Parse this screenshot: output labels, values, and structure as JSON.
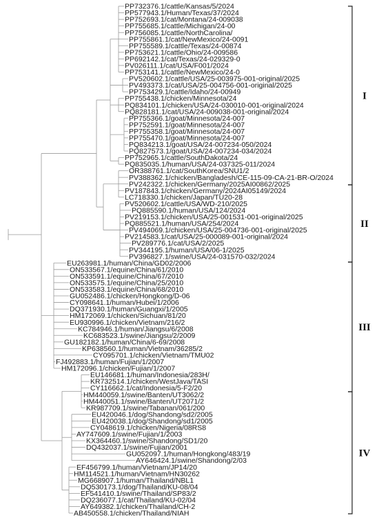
{
  "tree": {
    "clades": [
      {
        "label": "I"
      },
      {
        "label": "II"
      },
      {
        "label": "III"
      },
      {
        "label": "IV"
      }
    ],
    "leaves": [
      "PP732376.1/cattle/Kansas/5/2024",
      "PP577943.1/Human/Texas/37/2024",
      "PP752693.1/cat/Montana/24-009038",
      "PP755685.1/cattle/Michigan/24-00",
      "PP756085.1/cattle/NorthCarolina/",
      "PP755861.1/cat/NewMexico/24-0091",
      "PP755589.1/cattle/Texas/24-00874",
      "PP753621.1/cattle/Ohio/24-009586",
      "PP692142.1/cat/Texas/24-029329-0",
      "PV026111.1/cat/USA/F001/2024",
      "PP753141.1/cattle/NewMexico/24-0",
      "PV520602.1/cattle/USA/25-003975-001-original/2025",
      "PV493373.1/cat/USA/25-004756-001-original/2025",
      "PP753429.1/cattle/Idaho/24-00949",
      "PP755438.1/chicken/Minnesota/24",
      "PQ834101.1/chicken/USA/24-030010-001-original/2024",
      "PQ828181.1/cat/USA/24-009038-001-original/2024",
      "PP755366.1/goat/Minnesota/24-007",
      "PP752591.1/goat/Minnesota/24-007",
      "PP755358.1/goat/Minnesota/24-007",
      "PP755470.1/goat/Minnesota/24-007",
      "PQ834213.1/goat/USA/24-007234-050/2024",
      "PQ827573.1/goat/USA/24-007234-034/2024",
      "PP752965.1/cattle/SouthDakota/24",
      "PQ835035.1/human/USA/24-037325-011/2024",
      "OR388761.1/cat/SouthKorea/SNU1/2",
      "PV388362.1/chicken/Bangladesh/CE-115-09-CA-21-BR-O/2024",
      "PV242322.1/chicken/Germany/2025AI00862/2025",
      "PV187843.1/chicken/Germany/2024AI05149/2024",
      "LC718330.1/chicken/Japan/TU20-28",
      "PV520602.1/cattle/USA/WD-210/2025",
      "PQ885590.1/human/USA/124/2024",
      "PV219153.1/chicken/USA/25-001531-001-original/2025",
      "PQ885521.1/human/USA/254/2024",
      "PV494069.1/chicken/USA/25-004736-001-original/2025",
      "PV214583.1/cat/USA/25-000089-001-original/2024",
      "PV289776.1/cat/USA/2/2025",
      "PV344195.1/human/USA/06-1/2025",
      "PV396827.1/swine/USA/24-031570-032/2024",
      "EU263981.1/human/China/GD02/2006",
      "ON533567.1/equine/China/61/2010",
      "ON533591.1/equine/China/67/2010",
      "ON533575.1/equine/China/25/2010",
      "ON533583.1/equine/China/68/2010",
      "GU052486.1/chicken/Hongkong/D-06",
      "CY098641.1/human/Hubei/1/2006",
      "DQ371930.1/human/Guangxi/1/2005",
      "HM172069.1/chicken/Sichuan/81/20",
      "EU930996.1/chicken/Vietnam/216/2",
      "KC784946.1/human/Jiangsu/6/2008",
      "KC683523.1/swine/Jiangsu/2/2009",
      "GU182182.1/human/China/6-69/2008",
      "KP638560.1/human/Vietnam/36285/2",
      "CY095701.1/chicken/Vietnam/TMU02",
      "FJ492883.1/human/Fujian/1/2007",
      "HM172096.1/chicken/Fujian/1/2007",
      "EU146681.1/human/Indonesia/283H/",
      "KR732514.1/chicken/WestJava/TASI",
      "CY116662.1/cat/Indonesia/5-F2/20",
      "HM440059.1/swine/Banten/UT3062/2",
      "HM440051.1/swine/Banten/UT2071/2",
      "KR987709.1/swine/Tabanan/061/200",
      "EU420046.1/dog/Shandong/sd2/2005",
      "EU420038.1/dog/Shandong/sd1/2005",
      "CY048619.1/chicken/Nigeria/08RS8",
      "AY747609.1/swine/Fujian/1/2003",
      "KX364460.1/swine/Shandong/SD1/20",
      "DQ432037.1/swine/Fujian/2001",
      "GU052097.1/human/Hongkong/483/19",
      "AY646424.1/swine/Shandong/2/03",
      "EF456799.1/human/Vietnam/JP14/20",
      "HM114521.1/human/Vietnam/HN30262",
      "MG668907.1/human/Thailand/NBL1",
      "DQ530173.1/dog/Thailand/KU-08/04",
      "EF541410.1/swine/Thailand/SP83/2",
      "DQ236077.1/cat/Thailand/KU-02/04",
      "AY649382.1/chicken/Thailand/CH-2",
      "AB450558.1/chicken/Thailand/NIAH"
    ]
  }
}
